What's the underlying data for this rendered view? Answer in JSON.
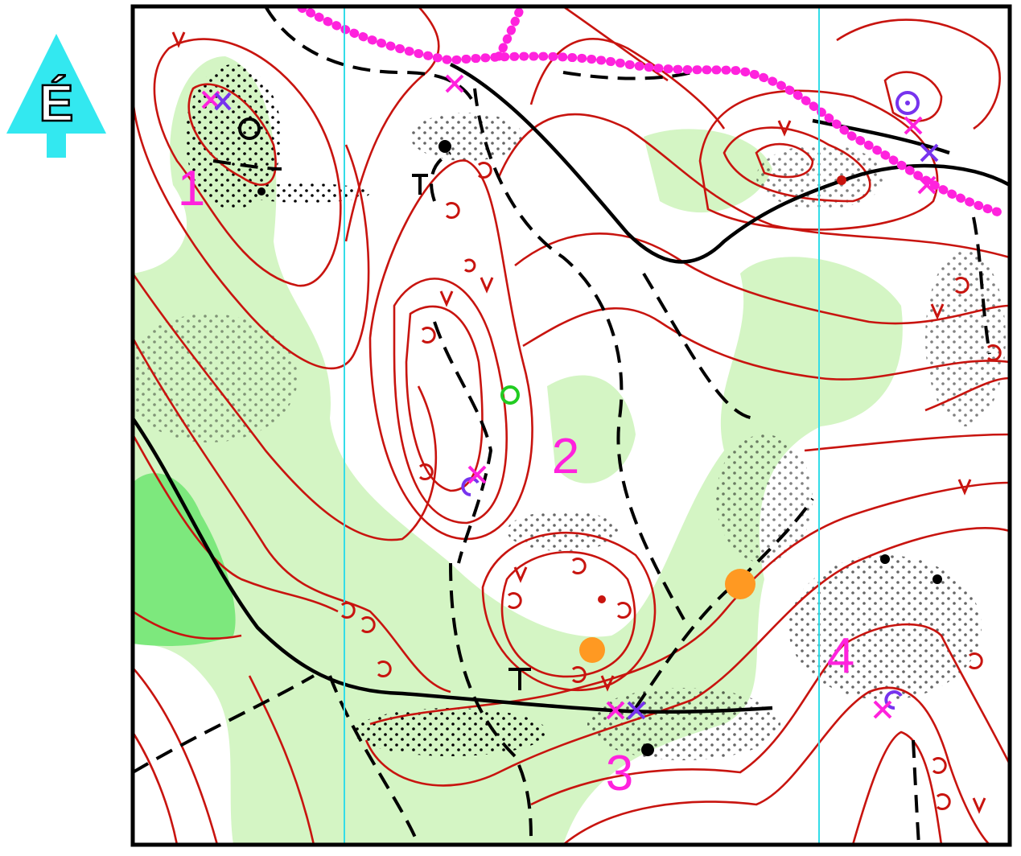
{
  "north_arrow": {
    "label": "É"
  },
  "controls": [
    {
      "label": "1"
    },
    {
      "label": "2"
    },
    {
      "label": "3"
    },
    {
      "label": "4"
    }
  ]
}
